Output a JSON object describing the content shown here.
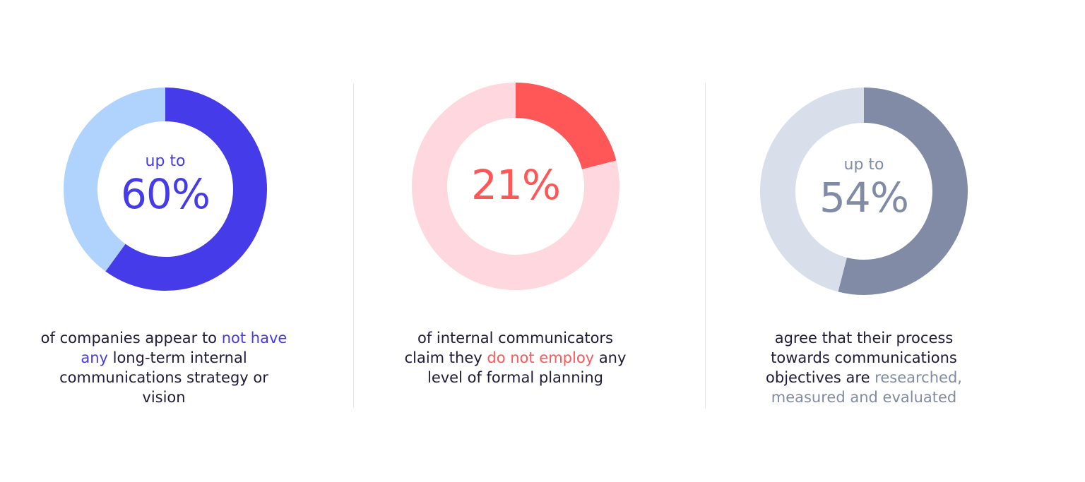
{
  "chart_data": [
    {
      "type": "pie",
      "variant": "donut",
      "prefix": "up to",
      "value_label": "60%",
      "slices": [
        {
          "value": 60,
          "color": "#463be8"
        },
        {
          "value": 40,
          "color": "#b0d3fd"
        }
      ],
      "caption": {
        "before": "of companies appear to",
        "highlight": "not have any",
        "after": "long-term internal communications strategy or vision"
      },
      "colors": {
        "accent": "#463be8",
        "track": "#b0d3fd"
      }
    },
    {
      "type": "pie",
      "variant": "donut",
      "prefix": "",
      "value_label": "21%",
      "slices": [
        {
          "value": 21,
          "color": "#ff5757"
        },
        {
          "value": 79,
          "color": "#ffd7de"
        }
      ],
      "caption": {
        "before": "of internal communicators claim they",
        "highlight": "do not employ",
        "after": "any level of formal planning"
      },
      "colors": {
        "accent": "#ff5757",
        "track": "#ffd7de"
      }
    },
    {
      "type": "pie",
      "variant": "donut",
      "prefix": "up to",
      "value_label": "54%",
      "slices": [
        {
          "value": 54,
          "color": "#818ba6"
        },
        {
          "value": 46,
          "color": "#d9deeb"
        }
      ],
      "caption": {
        "before": "agree that their process towards communications objectives are",
        "highlight": "researched, measured and evaluated",
        "after": ""
      },
      "colors": {
        "accent": "#818ba6",
        "track": "#d9deeb"
      }
    }
  ]
}
